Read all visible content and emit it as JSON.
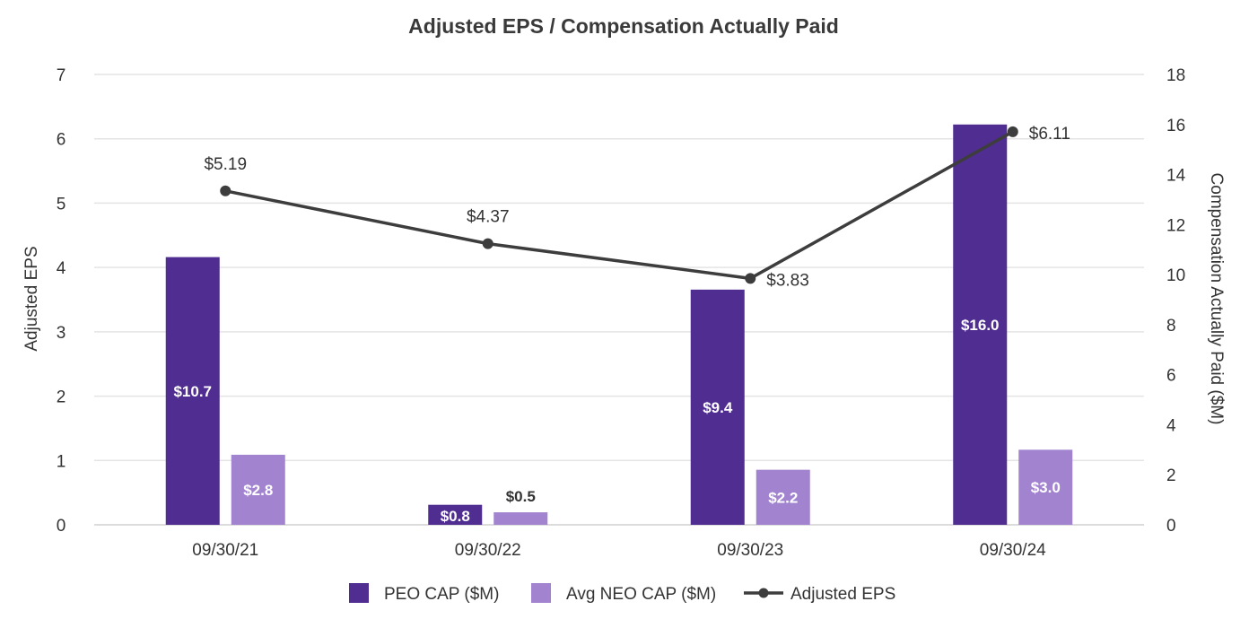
{
  "chart_data": {
    "type": "bar",
    "title": "Adjusted EPS / Compensation Actually Paid",
    "categories": [
      "09/30/21",
      "09/30/22",
      "09/30/23",
      "09/30/24"
    ],
    "y_left": {
      "label": "Adjusted EPS",
      "range": [
        0,
        7
      ],
      "ticks": [
        0,
        1,
        2,
        3,
        4,
        5,
        6,
        7
      ]
    },
    "y_right": {
      "label": "Compensation Actually Paid ($M)",
      "range": [
        0,
        18
      ],
      "ticks": [
        0,
        2,
        4,
        6,
        8,
        10,
        12,
        14,
        16,
        18
      ]
    },
    "grid": true,
    "legend_position": "bottom",
    "series": [
      {
        "name": "PEO CAP ($M)",
        "type": "bar",
        "axis": "right",
        "color": "#4f2d91",
        "values": [
          10.7,
          0.8,
          9.4,
          16.0
        ],
        "labels": [
          "$10.7",
          "$0.8",
          "$9.4",
          "$16.0"
        ]
      },
      {
        "name": "Avg NEO CAP ($M)",
        "type": "bar",
        "axis": "right",
        "color": "#a283cf",
        "values": [
          2.8,
          0.5,
          2.2,
          3.0
        ],
        "labels": [
          "$2.8",
          "$0.5",
          "$2.2",
          "$3.0"
        ]
      },
      {
        "name": "Adjusted EPS",
        "type": "line",
        "axis": "left",
        "color": "#3d3d3d",
        "values": [
          5.19,
          4.37,
          3.83,
          6.11
        ],
        "labels": [
          "$5.19",
          "$4.37",
          "$3.83",
          "$6.11"
        ]
      }
    ]
  }
}
